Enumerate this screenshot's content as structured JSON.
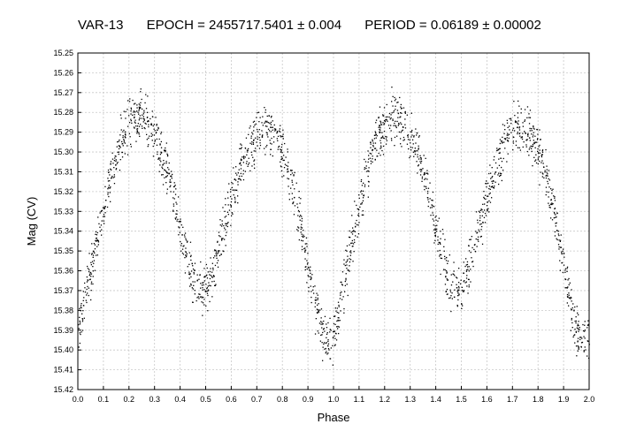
{
  "header": {
    "object": "VAR-13",
    "epoch": "EPOCH = 2455717.5401 ± 0.004",
    "period": "PERIOD = 0.06189 ± 0.00002"
  },
  "chart_data": {
    "type": "scatter",
    "title": "",
    "xlabel": "Phase",
    "ylabel": "Mag (CV)",
    "xlim": [
      0.0,
      2.0
    ],
    "ylim": [
      15.25,
      15.42
    ],
    "y_inverted": true,
    "grid": true,
    "x_ticks": [
      "0.0",
      "0.1",
      "0.2",
      "0.3",
      "0.4",
      "0.5",
      "0.6",
      "0.7",
      "0.8",
      "0.9",
      "1.0",
      "1.1",
      "1.2",
      "1.3",
      "1.4",
      "1.5",
      "1.6",
      "1.7",
      "1.8",
      "1.9",
      "2.0"
    ],
    "y_ticks": [
      "15.25",
      "15.26",
      "15.27",
      "15.28",
      "15.29",
      "15.30",
      "15.31",
      "15.32",
      "15.33",
      "15.34",
      "15.35",
      "15.36",
      "15.37",
      "15.38",
      "15.39",
      "15.40",
      "15.41",
      "15.42"
    ],
    "series": [
      {
        "marker_color": "#000000",
        "x": [
          0.0,
          0.02,
          0.04,
          0.06,
          0.08,
          0.1,
          0.12,
          0.14,
          0.16,
          0.18,
          0.2,
          0.22,
          0.24,
          0.26,
          0.28,
          0.3,
          0.32,
          0.34,
          0.36,
          0.38,
          0.4,
          0.42,
          0.44,
          0.46,
          0.48,
          0.5,
          0.52,
          0.54,
          0.56,
          0.58,
          0.6,
          0.62,
          0.64,
          0.66,
          0.68,
          0.7,
          0.72,
          0.74,
          0.76,
          0.78,
          0.8,
          0.82,
          0.84,
          0.86,
          0.88,
          0.9,
          0.92,
          0.94,
          0.96,
          0.98,
          1.0,
          1.02,
          1.04,
          1.06,
          1.08,
          1.1,
          1.12,
          1.14,
          1.16,
          1.18,
          1.2,
          1.22,
          1.24,
          1.26,
          1.28,
          1.3,
          1.32,
          1.34,
          1.36,
          1.38,
          1.4,
          1.42,
          1.44,
          1.46,
          1.48,
          1.5,
          1.52,
          1.54,
          1.56,
          1.58,
          1.6,
          1.62,
          1.64,
          1.66,
          1.68,
          1.7,
          1.72,
          1.74,
          1.76,
          1.78,
          1.8,
          1.82,
          1.84,
          1.86,
          1.88,
          1.9,
          1.92,
          1.94,
          1.96,
          1.98,
          2.0
        ],
        "y": [
          15.392,
          15.378,
          15.365,
          15.353,
          15.34,
          15.328,
          15.316,
          15.305,
          15.296,
          15.29,
          15.286,
          15.283,
          15.282,
          15.283,
          15.286,
          15.291,
          15.298,
          15.306,
          15.315,
          15.326,
          15.338,
          15.35,
          15.36,
          15.367,
          15.37,
          15.368,
          15.361,
          15.352,
          15.343,
          15.333,
          15.323,
          15.314,
          15.306,
          15.299,
          15.294,
          15.29,
          15.288,
          15.288,
          15.29,
          15.294,
          15.3,
          15.308,
          15.318,
          15.33,
          15.344,
          15.358,
          15.372,
          15.384,
          15.393,
          15.396,
          15.392,
          15.378,
          15.365,
          15.353,
          15.34,
          15.328,
          15.316,
          15.305,
          15.296,
          15.29,
          15.286,
          15.283,
          15.282,
          15.283,
          15.286,
          15.291,
          15.298,
          15.306,
          15.315,
          15.326,
          15.338,
          15.35,
          15.36,
          15.367,
          15.37,
          15.368,
          15.361,
          15.352,
          15.343,
          15.333,
          15.323,
          15.314,
          15.306,
          15.299,
          15.294,
          15.29,
          15.288,
          15.288,
          15.29,
          15.294,
          15.3,
          15.308,
          15.318,
          15.33,
          15.344,
          15.358,
          15.372,
          15.384,
          15.393,
          15.396,
          15.392
        ],
        "scatter_width_mag": 0.018,
        "points_per_sample": 22
      }
    ]
  }
}
